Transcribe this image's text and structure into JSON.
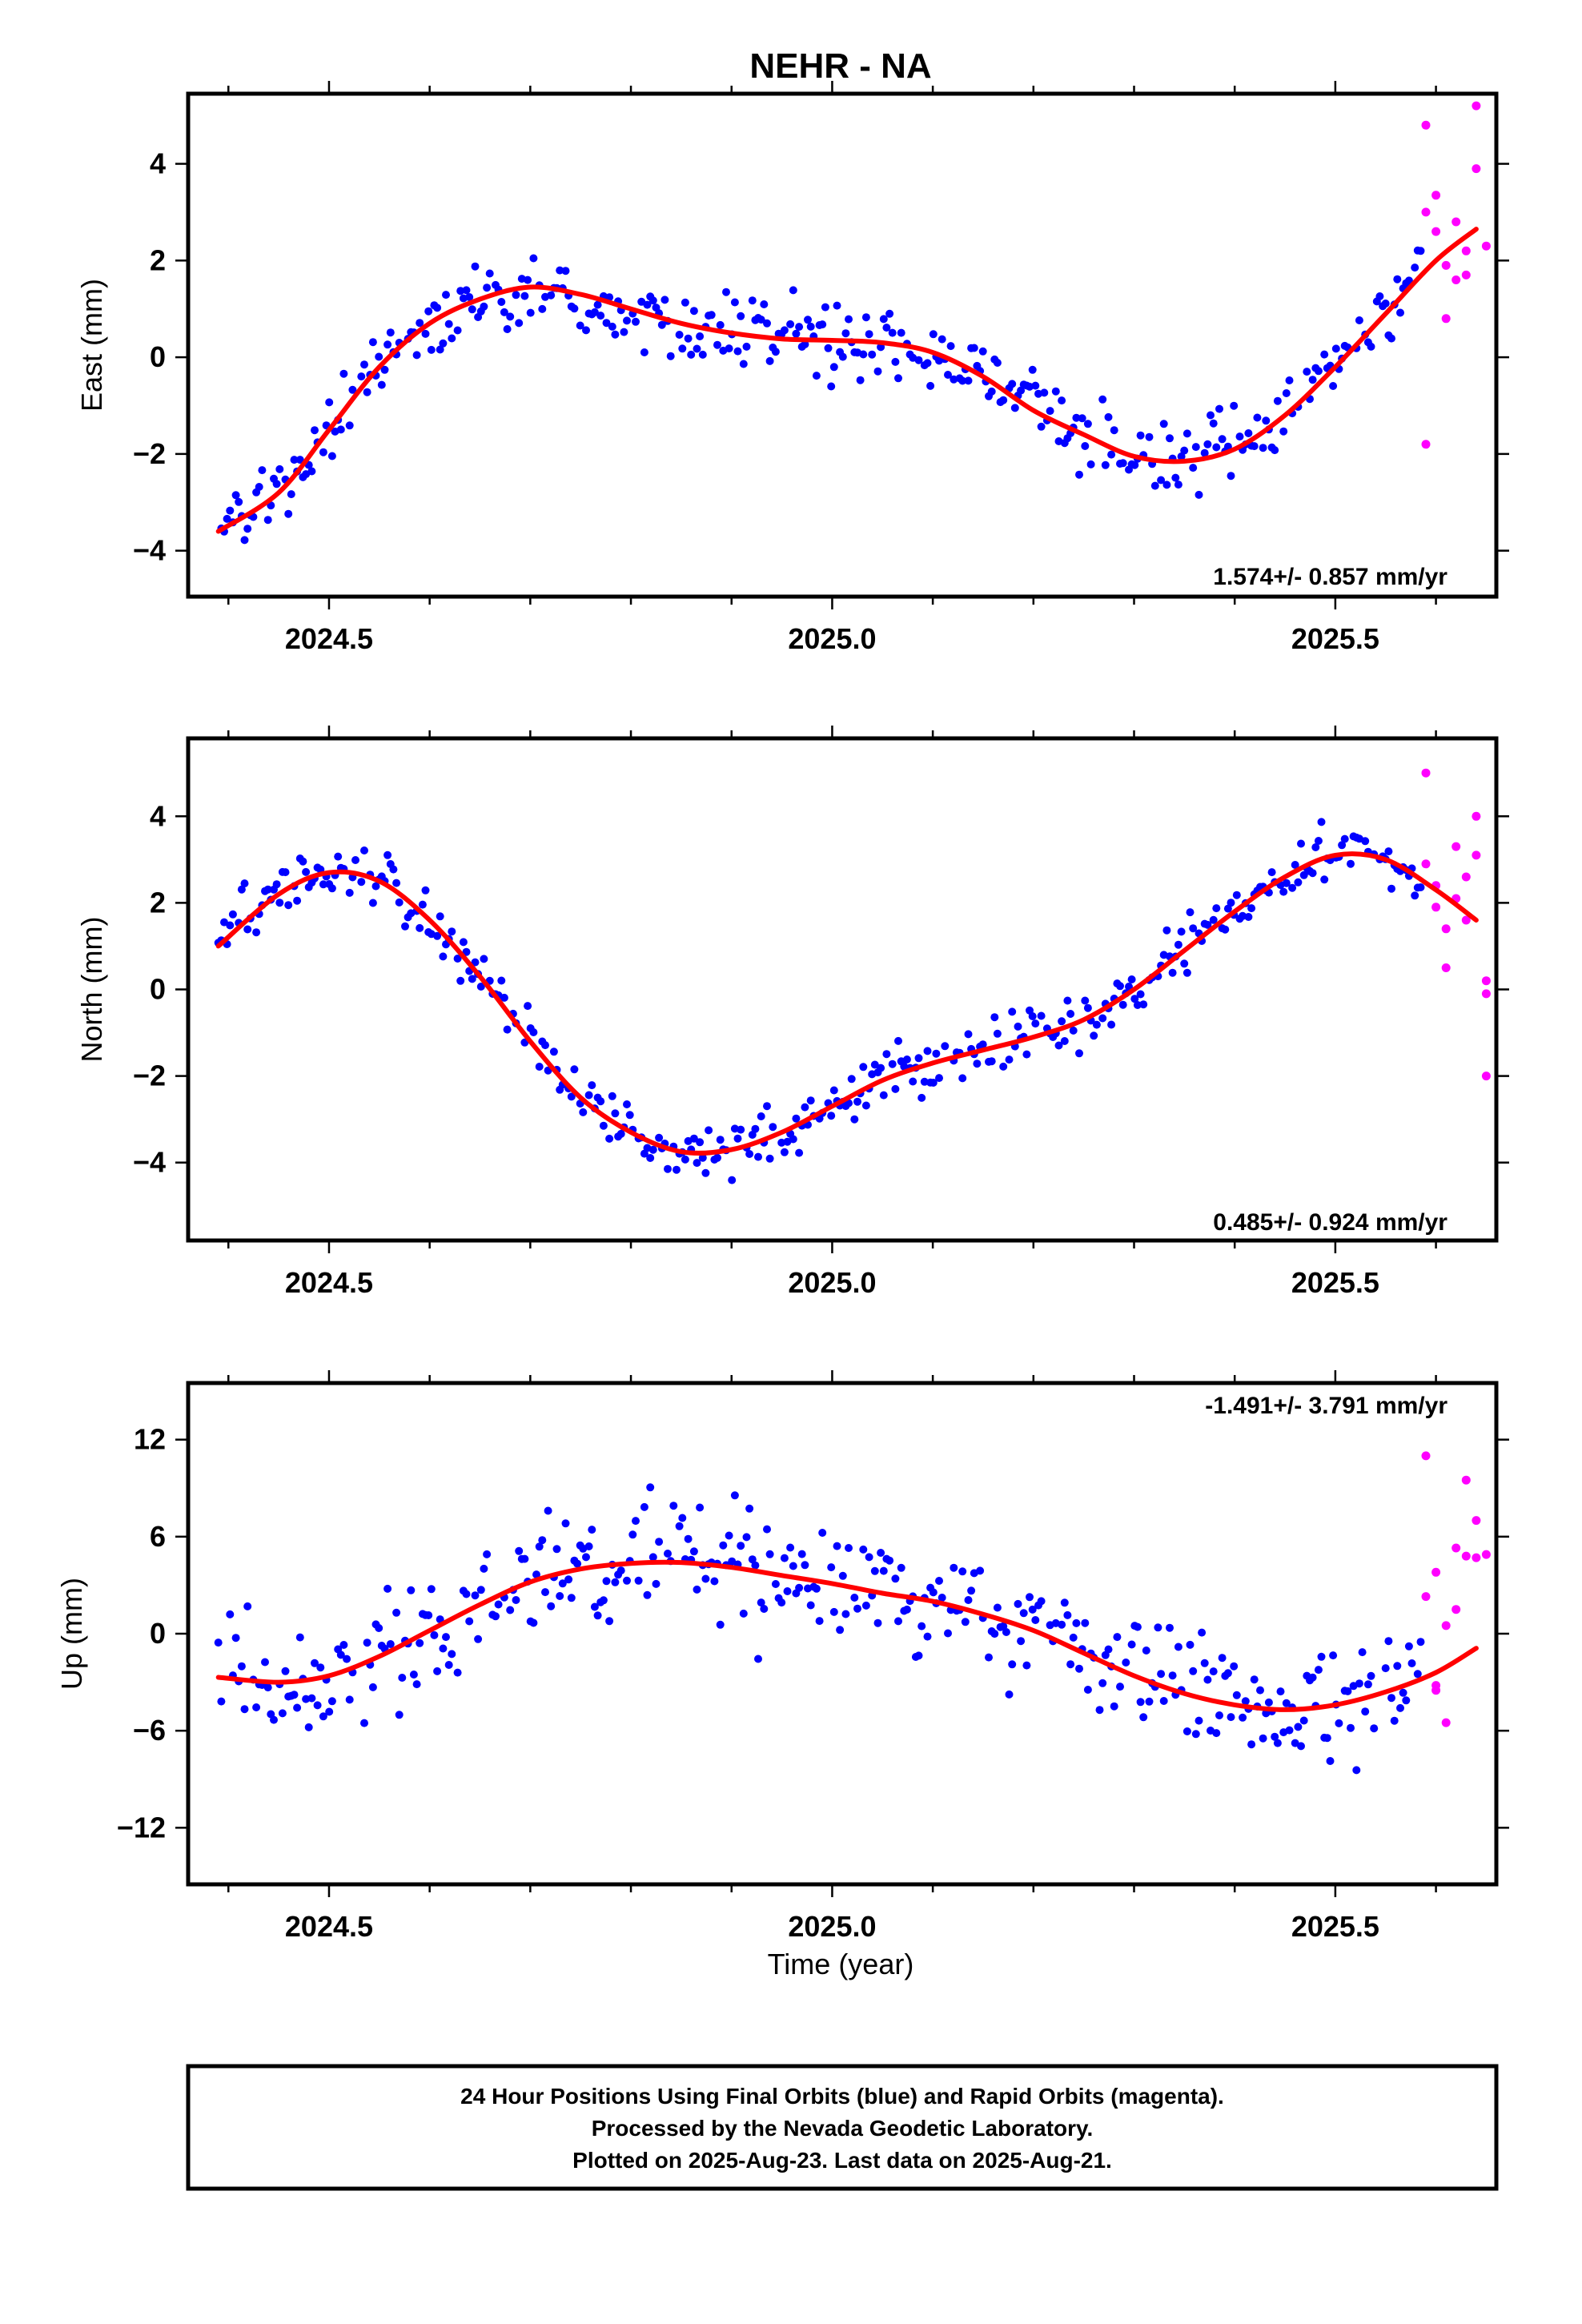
{
  "title": "NEHR - NA",
  "xlabel": "Time (year)",
  "colors": {
    "final": "#0000ff",
    "rapid": "#ff00ff",
    "model": "#ff0000",
    "axes": "#000000"
  },
  "footer": {
    "line1": "24 Hour Positions Using Final Orbits (blue) and Rapid Orbits (magenta).",
    "line2": "Processed by the Nevada Geodetic Laboratory.",
    "line3": "Plotted on 2025-Aug-23. Last data on 2025-Aug-21."
  },
  "chart_data": [
    {
      "type": "scatter",
      "ylabel": "East (mm)",
      "rate": "1.574+/- 0.857 mm/yr",
      "xlim": [
        2024.36,
        2025.66
      ],
      "ylim": [
        -4.95,
        5.45
      ],
      "xticks": [
        "2024.5",
        "2025.0",
        "2025.5"
      ],
      "yticks": [
        "−4",
        "−2",
        "0",
        "2",
        "4"
      ],
      "ytick_values": [
        -4,
        -2,
        0,
        2,
        4
      ],
      "model_knots": [
        [
          2024.39,
          -3.6
        ],
        [
          2024.45,
          -2.8
        ],
        [
          2024.5,
          -1.5
        ],
        [
          2024.55,
          -0.2
        ],
        [
          2024.6,
          0.7
        ],
        [
          2024.65,
          1.2
        ],
        [
          2024.7,
          1.45
        ],
        [
          2024.75,
          1.3
        ],
        [
          2024.8,
          1.0
        ],
        [
          2024.85,
          0.7
        ],
        [
          2024.9,
          0.5
        ],
        [
          2024.95,
          0.38
        ],
        [
          2025.0,
          0.35
        ],
        [
          2025.05,
          0.3
        ],
        [
          2025.1,
          0.1
        ],
        [
          2025.15,
          -0.4
        ],
        [
          2025.2,
          -1.1
        ],
        [
          2025.25,
          -1.6
        ],
        [
          2025.3,
          -2.05
        ],
        [
          2025.35,
          -2.15
        ],
        [
          2025.4,
          -1.9
        ],
        [
          2025.45,
          -1.2
        ],
        [
          2025.5,
          -0.2
        ],
        [
          2025.55,
          0.9
        ],
        [
          2025.6,
          2.0
        ],
        [
          2025.64,
          2.65
        ]
      ],
      "rapid_points": [
        [
          2025.59,
          4.8
        ],
        [
          2025.59,
          3.0
        ],
        [
          2025.6,
          3.35
        ],
        [
          2025.6,
          2.6
        ],
        [
          2025.61,
          1.9
        ],
        [
          2025.61,
          0.8
        ],
        [
          2025.62,
          1.6
        ],
        [
          2025.62,
          2.8
        ],
        [
          2025.63,
          2.2
        ],
        [
          2025.63,
          1.7
        ],
        [
          2025.64,
          5.2
        ],
        [
          2025.64,
          3.9
        ],
        [
          2025.65,
          2.3
        ],
        [
          2025.59,
          -1.8
        ]
      ]
    },
    {
      "type": "scatter",
      "ylabel": "North (mm)",
      "rate": "0.485+/- 0.924 mm/yr",
      "xlim": [
        2024.36,
        2025.66
      ],
      "ylim": [
        -5.8,
        5.8
      ],
      "xticks": [
        "2024.5",
        "2025.0",
        "2025.5"
      ],
      "yticks": [
        "−4",
        "−2",
        "0",
        "2",
        "4"
      ],
      "ytick_values": [
        -4,
        -2,
        0,
        2,
        4
      ],
      "model_knots": [
        [
          2024.39,
          1.0
        ],
        [
          2024.45,
          2.2
        ],
        [
          2024.5,
          2.7
        ],
        [
          2024.55,
          2.5
        ],
        [
          2024.6,
          1.6
        ],
        [
          2024.65,
          0.3
        ],
        [
          2024.7,
          -1.2
        ],
        [
          2024.75,
          -2.5
        ],
        [
          2024.8,
          -3.3
        ],
        [
          2024.85,
          -3.75
        ],
        [
          2024.9,
          -3.7
        ],
        [
          2024.95,
          -3.3
        ],
        [
          2025.0,
          -2.7
        ],
        [
          2025.05,
          -2.1
        ],
        [
          2025.1,
          -1.7
        ],
        [
          2025.15,
          -1.4
        ],
        [
          2025.2,
          -1.1
        ],
        [
          2025.25,
          -0.7
        ],
        [
          2025.3,
          0.0
        ],
        [
          2025.35,
          0.9
        ],
        [
          2025.4,
          1.8
        ],
        [
          2025.45,
          2.6
        ],
        [
          2025.5,
          3.1
        ],
        [
          2025.55,
          3.0
        ],
        [
          2025.6,
          2.3
        ],
        [
          2025.64,
          1.6
        ]
      ],
      "rapid_points": [
        [
          2025.59,
          5.0
        ],
        [
          2025.59,
          2.9
        ],
        [
          2025.6,
          2.4
        ],
        [
          2025.6,
          1.9
        ],
        [
          2025.61,
          1.4
        ],
        [
          2025.61,
          0.5
        ],
        [
          2025.62,
          3.3
        ],
        [
          2025.62,
          2.1
        ],
        [
          2025.63,
          2.6
        ],
        [
          2025.63,
          1.6
        ],
        [
          2025.64,
          4.0
        ],
        [
          2025.64,
          3.1
        ],
        [
          2025.65,
          -0.1
        ],
        [
          2025.65,
          0.2
        ],
        [
          2025.65,
          -2.0
        ]
      ]
    },
    {
      "type": "scatter",
      "ylabel": "Up (mm)",
      "rate": "-1.491+/- 3.791 mm/yr",
      "xlim": [
        2024.36,
        2025.66
      ],
      "ylim": [
        -15.5,
        15.5
      ],
      "xticks": [
        "2024.5",
        "2025.0",
        "2025.5"
      ],
      "yticks": [
        "12",
        "6",
        "0",
        "−6",
        "−12"
      ],
      "ytick_values": [
        12,
        6,
        0,
        -6,
        -12
      ],
      "model_knots": [
        [
          2024.39,
          -2.7
        ],
        [
          2024.45,
          -3.0
        ],
        [
          2024.5,
          -2.6
        ],
        [
          2024.55,
          -1.4
        ],
        [
          2024.6,
          0.2
        ],
        [
          2024.65,
          1.8
        ],
        [
          2024.7,
          3.2
        ],
        [
          2024.75,
          4.0
        ],
        [
          2024.8,
          4.35
        ],
        [
          2024.85,
          4.4
        ],
        [
          2024.9,
          4.1
        ],
        [
          2024.95,
          3.6
        ],
        [
          2025.0,
          3.1
        ],
        [
          2025.05,
          2.5
        ],
        [
          2025.1,
          2.0
        ],
        [
          2025.15,
          1.2
        ],
        [
          2025.2,
          0.2
        ],
        [
          2025.25,
          -1.2
        ],
        [
          2025.3,
          -2.6
        ],
        [
          2025.35,
          -3.7
        ],
        [
          2025.4,
          -4.4
        ],
        [
          2025.45,
          -4.7
        ],
        [
          2025.5,
          -4.4
        ],
        [
          2025.55,
          -3.6
        ],
        [
          2025.6,
          -2.4
        ],
        [
          2025.64,
          -0.9
        ]
      ],
      "rapid_points": [
        [
          2025.59,
          11.0
        ],
        [
          2025.59,
          2.3
        ],
        [
          2025.6,
          3.8
        ],
        [
          2025.6,
          -3.5
        ],
        [
          2025.61,
          0.5
        ],
        [
          2025.61,
          -5.5
        ],
        [
          2025.62,
          5.3
        ],
        [
          2025.62,
          1.5
        ],
        [
          2025.63,
          9.5
        ],
        [
          2025.63,
          4.8
        ],
        [
          2025.64,
          7.0
        ],
        [
          2025.64,
          4.7
        ],
        [
          2025.65,
          4.9
        ],
        [
          2025.6,
          -3.2
        ]
      ]
    }
  ]
}
